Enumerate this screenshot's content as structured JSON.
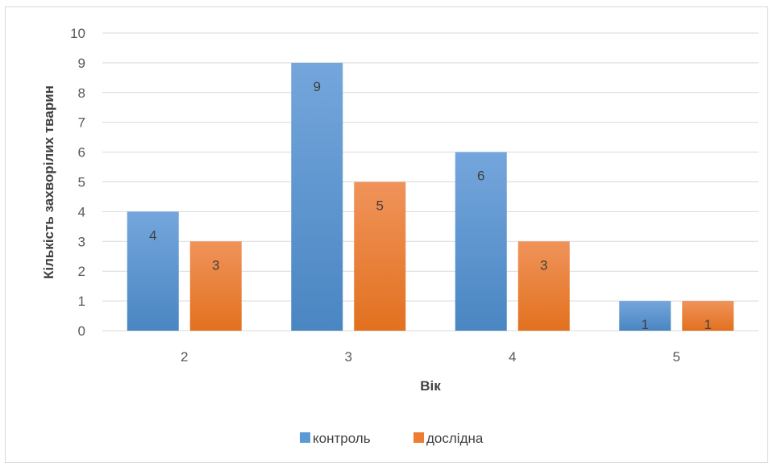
{
  "chart_data": {
    "type": "bar",
    "categories": [
      "2",
      "3",
      "4",
      "5"
    ],
    "series": [
      {
        "name": "контроль",
        "values": [
          4,
          9,
          6,
          1
        ],
        "color": "#5b9bd5"
      },
      {
        "name": "дослідна",
        "values": [
          3,
          5,
          3,
          1
        ],
        "color": "#ed7d31"
      }
    ],
    "title": "",
    "xlabel": "Вік",
    "ylabel": "Кількість  захворілих тварин",
    "ylim": [
      0,
      10
    ],
    "yticks": [
      0,
      1,
      2,
      3,
      4,
      5,
      6,
      7,
      8,
      9,
      10
    ],
    "grid": true,
    "legend_position": "bottom"
  }
}
